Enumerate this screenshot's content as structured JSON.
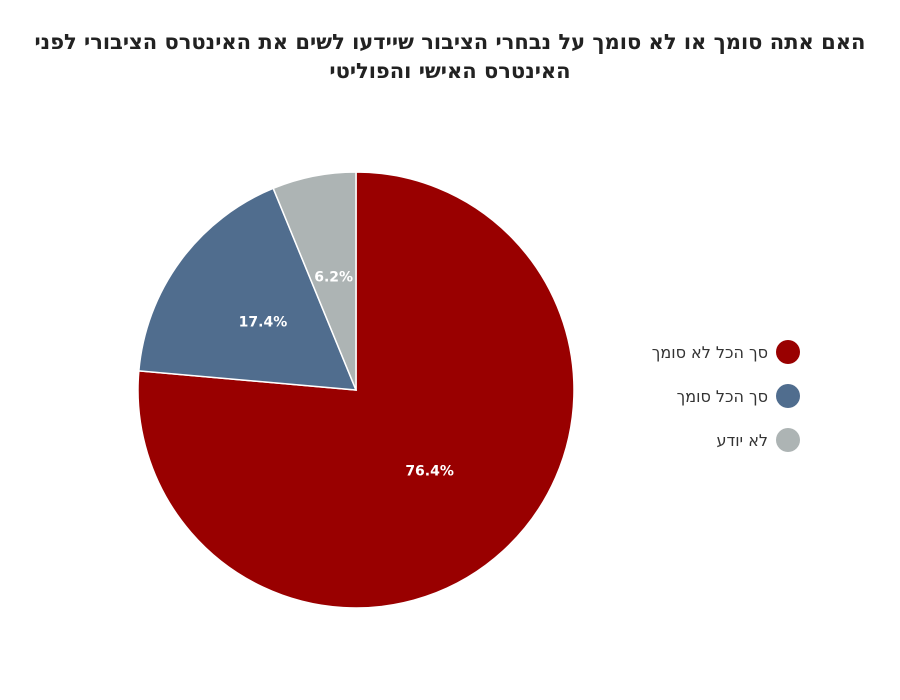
{
  "chart_data": {
    "type": "pie",
    "title": "האם אתה סומך או לא סומך על נבחרי הציבור שיידעו לשים את האינטרס הציבורי לפני האינטרס האישי והפוליטי",
    "slices": [
      {
        "label": "סך הכל לא סומך",
        "value": 76.4,
        "display": "76.4%",
        "color": "#990000"
      },
      {
        "label": "סך הכל סומך",
        "value": 17.4,
        "display": "17.4%",
        "color": "#506d8e"
      },
      {
        "label": "לא יודע",
        "value": 6.2,
        "display": "6.2%",
        "color": "#adb4b4"
      }
    ],
    "legend_position": "right"
  }
}
